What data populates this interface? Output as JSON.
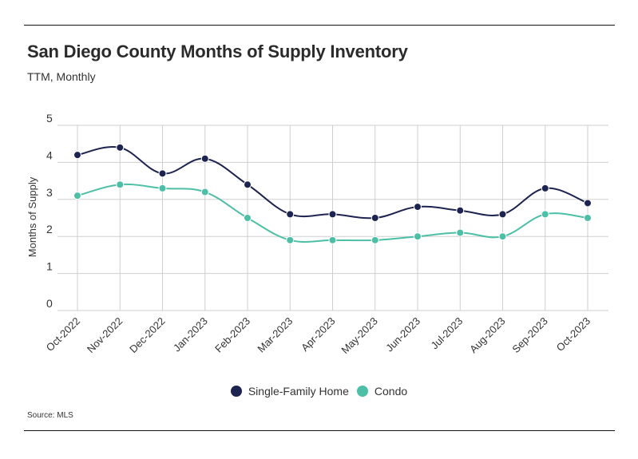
{
  "header": {
    "title": "San Diego County Months of Supply Inventory",
    "subtitle": "TTM, Monthly"
  },
  "source": "Source:  MLS",
  "colors": {
    "single_family": "#1e2450",
    "condo": "#4cbfa6",
    "grid": "#cfcfcf"
  },
  "chart_data": {
    "type": "line",
    "title": "San Diego County Months of Supply Inventory",
    "subtitle": "TTM, Monthly",
    "xlabel": "",
    "ylabel": "Months of Supply",
    "ylim": [
      0,
      5
    ],
    "yticks": [
      0,
      1,
      2,
      3,
      4,
      5
    ],
    "grid": true,
    "legend_position": "bottom-center",
    "categories": [
      "Oct-2022",
      "Nov-2022",
      "Dec-2022",
      "Jan-2023",
      "Feb-2023",
      "Mar-2023",
      "Apr-2023",
      "May-2023",
      "Jun-2023",
      "Jul-2023",
      "Aug-2023",
      "Sep-2023",
      "Oct-2023"
    ],
    "series": [
      {
        "name": "Single-Family Home",
        "color": "#1e2450",
        "values": [
          4.2,
          4.4,
          3.7,
          4.1,
          3.4,
          2.6,
          2.6,
          2.5,
          2.8,
          2.7,
          2.6,
          3.3,
          2.9
        ]
      },
      {
        "name": "Condo",
        "color": "#4cbfa6",
        "values": [
          3.1,
          3.4,
          3.3,
          3.2,
          2.5,
          1.9,
          1.9,
          1.9,
          2.0,
          2.1,
          2.0,
          2.6,
          2.5
        ]
      }
    ]
  }
}
